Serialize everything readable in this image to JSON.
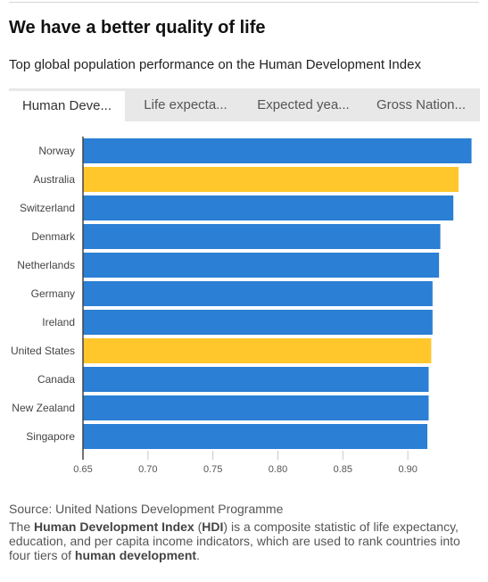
{
  "header": {
    "title": "We have a better quality of life",
    "subtitle": "Top global population performance on the Human Development Index"
  },
  "tabs": [
    {
      "label": "Human Deve...",
      "active": true
    },
    {
      "label": "Life expecta...",
      "active": false
    },
    {
      "label": "Expected yea...",
      "active": false
    },
    {
      "label": "Gross Nation...",
      "active": false
    }
  ],
  "colors": {
    "default_bar": "#2b7fd4",
    "highlight_bar": "#ffc72c",
    "axis": "#444444",
    "grid": "#c8c8c8"
  },
  "chart_data": {
    "type": "bar",
    "orientation": "horizontal",
    "categories": [
      "Norway",
      "Australia",
      "Switzerland",
      "Denmark",
      "Netherlands",
      "Germany",
      "Ireland",
      "United States",
      "Canada",
      "New Zealand",
      "Singapore"
    ],
    "values": [
      0.949,
      0.939,
      0.935,
      0.925,
      0.924,
      0.919,
      0.919,
      0.918,
      0.916,
      0.916,
      0.915
    ],
    "highlighted": [
      "Australia",
      "United States"
    ],
    "xlim": [
      0.65,
      0.95
    ],
    "xticks": [
      "0.65",
      "0.70",
      "0.75",
      "0.80",
      "0.85",
      "0.90"
    ],
    "grid": true,
    "legend": "none"
  },
  "footer": {
    "source": "Source: United Nations Development Programme",
    "note": {
      "p1": "The ",
      "b1": "Human Development Index",
      "p2": " (",
      "b2": "HDI",
      "p3": ") is a composite statistic of life expectancy, education, and per capita income indicators, which are used to rank countries into four tiers of ",
      "b3": "human development",
      "p4": "."
    }
  }
}
